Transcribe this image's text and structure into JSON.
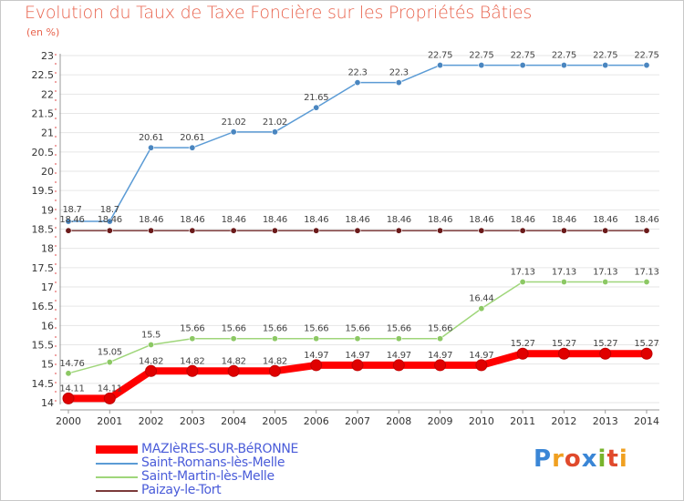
{
  "title": "Evolution du Taux de Taxe Foncière sur les Propriétés Bâties",
  "subtitle": "(en %)",
  "logo": {
    "text": "Proxiti",
    "letters": [
      {
        "ch": "P",
        "color": "#3a86d6"
      },
      {
        "ch": "r",
        "color": "#f0a020"
      },
      {
        "ch": "o",
        "color": "#e04a2c"
      },
      {
        "ch": "x",
        "color": "#3a86d6"
      },
      {
        "ch": "i",
        "color": "#78b42c"
      },
      {
        "ch": "t",
        "color": "#e04a2c"
      },
      {
        "ch": "i",
        "color": "#f0a020"
      }
    ]
  },
  "chart_data": {
    "type": "line",
    "title": "Evolution du Taux de Taxe Foncière sur les Propriétés Bâties",
    "ylabel": "(en %)",
    "xlabel": "",
    "ylim": [
      14,
      23
    ],
    "y_ticks": [
      "14",
      "14.5",
      "15",
      "15.5",
      "16",
      "16.5",
      "17",
      "17.5",
      "18",
      "18.5",
      "19",
      "19.5",
      "20",
      "20.5",
      "21",
      "21.5",
      "22",
      "22.5",
      "23"
    ],
    "x": [
      "2000",
      "2001",
      "2002",
      "2003",
      "2004",
      "2005",
      "2006",
      "2007",
      "2008",
      "2009",
      "2010",
      "2011",
      "2012",
      "2013",
      "2014"
    ],
    "legend_position": "bottom-left",
    "series": [
      {
        "name": "Saint-Romans-lès-Melle",
        "color": "#5b9bd5",
        "marker": "#4a86c0",
        "values": [
          18.7,
          18.7,
          20.61,
          20.61,
          21.02,
          21.02,
          21.65,
          22.3,
          22.3,
          22.75,
          22.75,
          22.75,
          22.75,
          22.75,
          22.75
        ],
        "labels": [
          "18.7",
          "18.7",
          "20.61",
          "20.61",
          "21.02",
          "21.02",
          "21.65",
          "22.3",
          "22.3",
          "22.75",
          "22.75",
          "22.75",
          "22.75",
          "22.75",
          "22.75"
        ]
      },
      {
        "name": "Paizay-le-Tort",
        "color": "#7b3a3a",
        "marker": "#6b1a1a",
        "values": [
          18.46,
          18.46,
          18.46,
          18.46,
          18.46,
          18.46,
          18.46,
          18.46,
          18.46,
          18.46,
          18.46,
          18.46,
          18.46,
          18.46,
          18.46
        ],
        "labels": [
          "18.46",
          "18.46",
          "18.46",
          "18.46",
          "18.46",
          "18.46",
          "18.46",
          "18.46",
          "18.46",
          "18.46",
          "18.46",
          "18.46",
          "18.46",
          "18.46",
          "18.46"
        ]
      },
      {
        "name": "Saint-Martin-lès-Melle",
        "color": "#9fd67a",
        "marker": "#8cc864",
        "values": [
          14.76,
          15.05,
          15.5,
          15.66,
          15.66,
          15.66,
          15.66,
          15.66,
          15.66,
          15.66,
          16.44,
          17.13,
          17.13,
          17.13,
          17.13
        ],
        "labels": [
          "14.76",
          "15.05",
          "15.5",
          "15.66",
          "15.66",
          "15.66",
          "15.66",
          "15.66",
          "15.66",
          "15.66",
          "16.44",
          "17.13",
          "17.13",
          "17.13",
          "17.13"
        ]
      },
      {
        "name": "MAZIèRES-SUR-BéRONNE",
        "color": "#ff0000",
        "marker": "#e00000",
        "values": [
          14.11,
          14.11,
          14.82,
          14.82,
          14.82,
          14.82,
          14.97,
          14.97,
          14.97,
          14.97,
          14.97,
          15.27,
          15.27,
          15.27,
          15.27
        ],
        "labels": [
          "14.11",
          "14.11",
          "14.82",
          "14.82",
          "14.82",
          "14.82",
          "14.97",
          "14.97",
          "14.97",
          "14.97",
          "14.97",
          "15.27",
          "15.27",
          "15.27",
          "15.27"
        ]
      }
    ],
    "legend_order": [
      "MAZIèRES-SUR-BéRONNE",
      "Saint-Romans-lès-Melle",
      "Saint-Martin-lès-Melle",
      "Paizay-le-Tort"
    ]
  }
}
